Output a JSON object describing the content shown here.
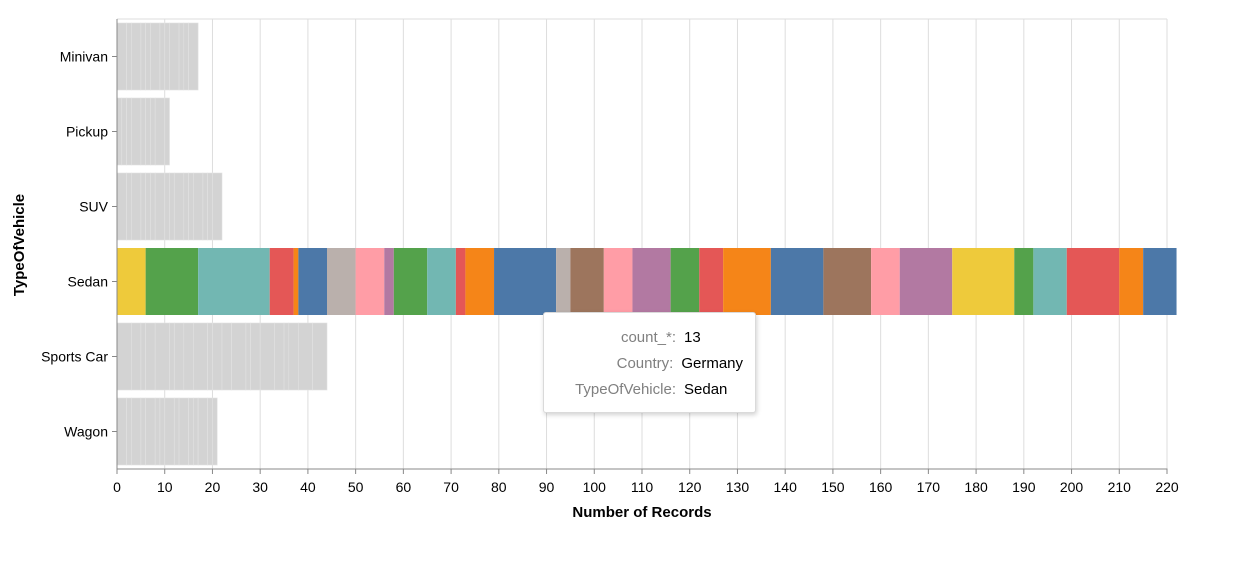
{
  "chart_data": {
    "type": "bar",
    "orientation": "horizontal",
    "stacked": true,
    "xlabel": "Number of Records",
    "ylabel": "TypeOfVehicle",
    "xlim": [
      0,
      220
    ],
    "x_ticks": [
      0,
      10,
      20,
      30,
      40,
      50,
      60,
      70,
      80,
      90,
      100,
      110,
      120,
      130,
      140,
      150,
      160,
      170,
      180,
      190,
      200,
      210,
      220
    ],
    "grid": true,
    "categories": [
      "Minivan",
      "Pickup",
      "SUV",
      "Sedan",
      "Sports Car",
      "Wagon"
    ],
    "totals": [
      17,
      11,
      22,
      222,
      44,
      21
    ],
    "highlighted_category": "Sedan",
    "inactive_color": "#d3d3d3",
    "inactive_segments": {
      "Minivan": [
        2,
        1,
        2,
        1,
        1,
        2,
        1,
        1,
        2,
        1,
        1,
        2
      ],
      "Pickup": [
        1,
        1,
        1,
        2,
        1,
        1,
        1,
        2,
        1
      ],
      "SUV": [
        2,
        1,
        2,
        1,
        1,
        1,
        2,
        1,
        1,
        2,
        1,
        1,
        2,
        1,
        1,
        2
      ],
      "Sports Car": [
        3,
        2,
        1,
        2,
        3,
        1,
        2,
        2,
        3,
        1,
        2,
        2,
        3,
        1,
        2,
        3,
        2,
        1,
        2,
        3,
        3
      ],
      "Wagon": [
        2,
        1,
        2,
        1,
        2,
        1,
        1,
        2,
        1,
        2,
        1,
        1,
        2,
        1,
        1
      ]
    },
    "sedan_segments": [
      {
        "value": 6,
        "color": "#eeca3b"
      },
      {
        "value": 11,
        "color": "#54a24b"
      },
      {
        "value": 15,
        "color": "#72b7b2"
      },
      {
        "value": 5,
        "color": "#e45756"
      },
      {
        "value": 1,
        "color": "#f58518"
      },
      {
        "value": 6,
        "color": "#4c78a8"
      },
      {
        "value": 6,
        "color": "#bab0ac"
      },
      {
        "value": 6,
        "color": "#ff9da6"
      },
      {
        "value": 2,
        "color": "#b279a2"
      },
      {
        "value": 7,
        "color": "#54a24b"
      },
      {
        "value": 6,
        "color": "#72b7b2"
      },
      {
        "value": 2,
        "color": "#e45756"
      },
      {
        "value": 6,
        "color": "#f58518"
      },
      {
        "value": 13,
        "color": "#4c78a8"
      },
      {
        "value": 3,
        "color": "#bab0ac"
      },
      {
        "value": 7,
        "color": "#9d755d"
      },
      {
        "value": 6,
        "color": "#ff9da6"
      },
      {
        "value": 8,
        "color": "#b279a2"
      },
      {
        "value": 6,
        "color": "#54a24b"
      },
      {
        "value": 5,
        "color": "#e45756"
      },
      {
        "value": 10,
        "color": "#f58518"
      },
      {
        "value": 11,
        "color": "#4c78a8"
      },
      {
        "value": 10,
        "color": "#9d755d"
      },
      {
        "value": 6,
        "color": "#ff9da6"
      },
      {
        "value": 11,
        "color": "#b279a2"
      },
      {
        "value": 13,
        "color": "#eeca3b"
      },
      {
        "value": 4,
        "color": "#54a24b"
      },
      {
        "value": 7,
        "color": "#72b7b2"
      },
      {
        "value": 11,
        "color": "#e45756"
      },
      {
        "value": 5,
        "color": "#f58518"
      },
      {
        "value": 7,
        "color": "#4c78a8"
      }
    ]
  },
  "tooltip": {
    "rows": [
      {
        "key": "count_*:",
        "value": "13"
      },
      {
        "key": "Country:",
        "value": "Germany"
      },
      {
        "key": "TypeOfVehicle:",
        "value": "Sedan"
      }
    ]
  }
}
